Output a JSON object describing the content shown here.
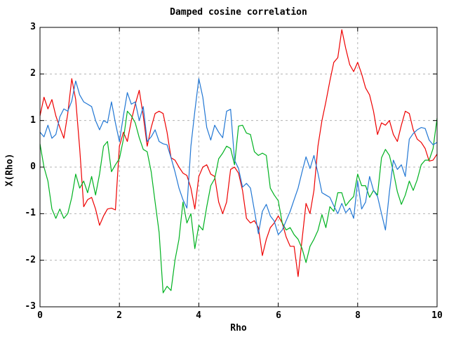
{
  "header": {
    "title": "Damped cosine correlation"
  },
  "colors": {
    "red_series": "#ee0000",
    "green_series": "#00b220",
    "blue_series": "#2277d4",
    "grid": "#b3b3b3",
    "border": "#000000",
    "background": "#ffffff"
  },
  "chart_data": {
    "type": "line",
    "title": "Damped cosine correlation",
    "xlabel": "Rho",
    "ylabel": "X(Rho)",
    "xlim": [
      0,
      10
    ],
    "ylim": [
      -3,
      3
    ],
    "xticks": [
      0,
      2,
      4,
      6,
      8,
      10
    ],
    "yticks": [
      -3,
      -2,
      -1,
      0,
      1,
      2,
      3
    ],
    "grid": "dashed",
    "legend_position": "none",
    "x_start": 0,
    "x_step": 0.1,
    "series": [
      {
        "name": "red",
        "color": "#ee0000",
        "values": [
          1.1,
          1.5,
          1.25,
          1.45,
          1.1,
          0.85,
          0.62,
          1.15,
          1.9,
          1.45,
          0.4,
          -0.85,
          -0.7,
          -0.65,
          -0.9,
          -1.25,
          -1.05,
          -0.9,
          -0.88,
          -0.92,
          0.45,
          0.75,
          0.55,
          1.0,
          1.35,
          1.65,
          1.1,
          0.45,
          0.85,
          1.15,
          1.2,
          1.15,
          0.75,
          0.2,
          0.15,
          0.0,
          -0.13,
          -0.18,
          -0.45,
          -0.9,
          -0.2,
          0.0,
          0.05,
          -0.15,
          -0.2,
          -0.75,
          -1.0,
          -0.75,
          -0.05,
          0.0,
          -0.13,
          -0.5,
          -1.1,
          -1.2,
          -1.15,
          -1.3,
          -1.9,
          -1.55,
          -1.3,
          -1.2,
          -1.05,
          -1.2,
          -1.5,
          -1.7,
          -1.7,
          -2.35,
          -1.55,
          -0.78,
          -1.0,
          -0.5,
          0.45,
          1.0,
          1.4,
          1.85,
          2.25,
          2.35,
          2.95,
          2.55,
          2.2,
          2.05,
          2.25,
          2.0,
          1.7,
          1.55,
          1.2,
          0.7,
          0.95,
          0.9,
          1.0,
          0.7,
          0.55,
          0.9,
          1.2,
          1.15,
          0.8,
          0.6,
          0.53,
          0.4,
          0.13,
          0.15,
          0.28
        ]
      },
      {
        "name": "green",
        "color": "#00b220",
        "values": [
          0.5,
          0.0,
          -0.3,
          -0.9,
          -1.1,
          -0.9,
          -1.1,
          -1.0,
          -0.65,
          -0.15,
          -0.45,
          -0.3,
          -0.55,
          -0.2,
          -0.6,
          -0.15,
          0.45,
          0.55,
          -0.1,
          0.05,
          0.18,
          0.6,
          1.2,
          1.1,
          0.95,
          0.63,
          0.38,
          0.33,
          -0.1,
          -0.75,
          -1.4,
          -2.7,
          -2.56,
          -2.65,
          -2.0,
          -1.55,
          -0.75,
          -1.2,
          -1.0,
          -1.75,
          -1.25,
          -1.35,
          -0.85,
          -0.4,
          -0.25,
          0.18,
          0.3,
          0.45,
          0.4,
          0.05,
          0.88,
          0.9,
          0.73,
          0.7,
          0.33,
          0.25,
          0.3,
          0.25,
          -0.45,
          -0.6,
          -0.72,
          -1.2,
          -1.35,
          -1.3,
          -1.45,
          -1.55,
          -1.75,
          -2.05,
          -1.7,
          -1.55,
          -1.36,
          -1.02,
          -1.3,
          -0.85,
          -0.95,
          -0.55,
          -0.55,
          -0.83,
          -0.72,
          -0.63,
          -0.15,
          -0.4,
          -0.4,
          -0.65,
          -0.5,
          -0.6,
          0.2,
          0.38,
          0.25,
          -0.1,
          -0.53,
          -0.8,
          -0.6,
          -0.3,
          -0.5,
          -0.27,
          0.05,
          0.15,
          0.15,
          0.4,
          1.05
        ]
      },
      {
        "name": "blue",
        "color": "#2277d4",
        "values": [
          0.75,
          0.65,
          0.9,
          0.62,
          0.7,
          1.08,
          1.25,
          1.2,
          1.42,
          1.85,
          1.55,
          1.4,
          1.35,
          1.3,
          1.0,
          0.8,
          1.0,
          0.95,
          1.4,
          0.95,
          0.55,
          1.1,
          1.6,
          1.35,
          1.4,
          1.0,
          1.3,
          0.55,
          0.65,
          0.8,
          0.55,
          0.5,
          0.48,
          0.2,
          -0.1,
          -0.45,
          -0.7,
          -0.88,
          0.45,
          1.2,
          1.9,
          1.5,
          0.85,
          0.58,
          0.9,
          0.75,
          0.63,
          1.2,
          1.24,
          0.15,
          -0.03,
          -0.43,
          -0.35,
          -0.45,
          -0.93,
          -1.43,
          -0.95,
          -0.8,
          -1.05,
          -1.16,
          -1.45,
          -1.35,
          -1.15,
          -0.95,
          -0.7,
          -0.45,
          -0.1,
          0.22,
          -0.03,
          0.25,
          -0.13,
          -0.55,
          -0.6,
          -0.65,
          -0.83,
          -1.0,
          -0.78,
          -0.98,
          -0.88,
          -1.1,
          -0.3,
          -0.9,
          -0.75,
          -0.2,
          -0.5,
          -0.63,
          -1.0,
          -1.35,
          -0.53,
          0.15,
          -0.05,
          0.05,
          -0.2,
          0.6,
          0.72,
          0.8,
          0.85,
          0.83,
          0.58,
          0.48,
          0.53
        ]
      }
    ]
  }
}
